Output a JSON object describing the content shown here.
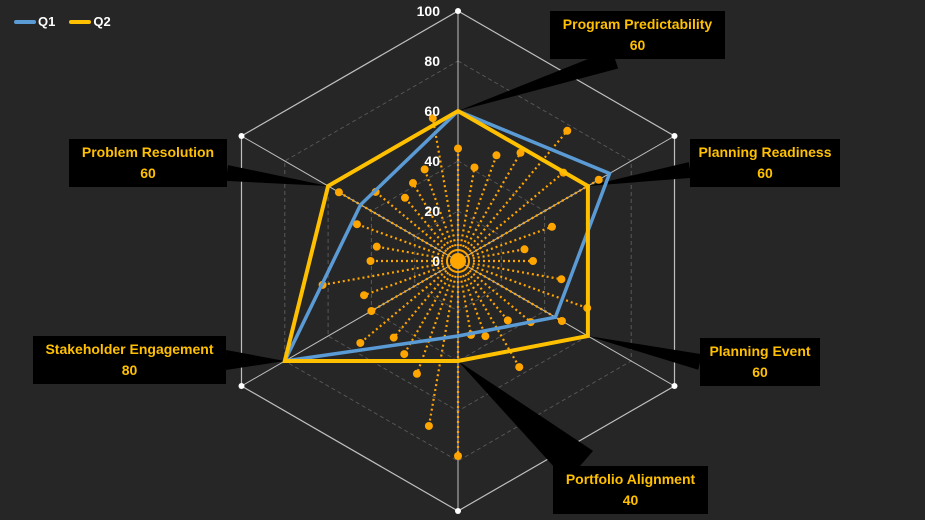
{
  "legend": {
    "items": [
      {
        "label": "Q1",
        "color": "#5B9BD5"
      },
      {
        "label": "Q2",
        "color": "#FFC000"
      }
    ]
  },
  "chart_data": {
    "type": "radar",
    "categories": [
      "Program Predictability",
      "Planning Readiness",
      "Planning Event",
      "Portfolio Alignment",
      "Stakeholder Engagement",
      "Problem Resolution"
    ],
    "series": [
      {
        "name": "Q1",
        "color": "#5B9BD5",
        "values": [
          60,
          70,
          45,
          30,
          80,
          45
        ]
      },
      {
        "name": "Q2",
        "color": "#FFC000",
        "values": [
          60,
          60,
          60,
          40,
          80,
          60
        ]
      }
    ],
    "radial_ticks": [
      0,
      20,
      40,
      60,
      80,
      100
    ],
    "rmax": 100,
    "callout_values": [
      "60",
      "60",
      "60",
      "40",
      "80",
      "60"
    ],
    "spokes": {
      "count": 36,
      "values": [
        45,
        38,
        45,
        50,
        68,
        55,
        65,
        40,
        27,
        30,
        42,
        55,
        48,
        38,
        31,
        49,
        32,
        30,
        78,
        67,
        48,
        43,
        40,
        51,
        40,
        40,
        55,
        35,
        33,
        43,
        55,
        43,
        33,
        36,
        39,
        58
      ],
      "color": "#FFA500"
    }
  }
}
